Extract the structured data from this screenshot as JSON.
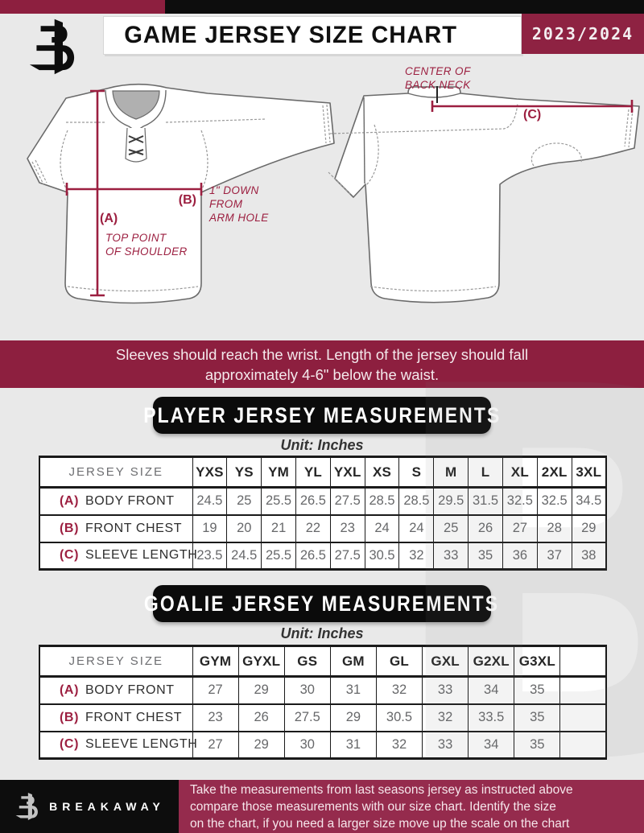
{
  "header": {
    "title": "GAME JERSEY SIZE CHART",
    "season": "2023/2024",
    "logo_name": "breakaway-b-logo"
  },
  "diagram": {
    "a_key": "(A)",
    "a_note": [
      "TOP POINT",
      "OF SHOULDER"
    ],
    "b_key": "(B)",
    "b_note": [
      "1\" DOWN",
      "FROM",
      "ARM HOLE"
    ],
    "c_key": "(C)",
    "c_note": [
      "CENTER OF",
      "BACK NECK"
    ]
  },
  "banner": {
    "lines": [
      "Sleeves should reach the wrist. Length of the jersey should fall",
      "approximately 4-6\" below the waist."
    ]
  },
  "player_table": {
    "section_title": "PLAYER JERSEY MEASUREMENTS",
    "unit": "Unit: Inches",
    "header_label": "JERSEY SIZE",
    "sizes": [
      "YXS",
      "YS",
      "YM",
      "YL",
      "YXL",
      "XS",
      "S",
      "M",
      "L",
      "XL",
      "2XL",
      "3XL"
    ],
    "rows": [
      {
        "key": "(A)",
        "label": "BODY FRONT",
        "values": [
          "24.5",
          "25",
          "25.5",
          "26.5",
          "27.5",
          "28.5",
          "28.5",
          "29.5",
          "31.5",
          "32.5",
          "32.5",
          "34.5"
        ]
      },
      {
        "key": "(B)",
        "label": "FRONT CHEST",
        "values": [
          "19",
          "20",
          "21",
          "22",
          "23",
          "24",
          "24",
          "25",
          "26",
          "27",
          "28",
          "29"
        ]
      },
      {
        "key": "(C)",
        "label": "SLEEVE LENGTH",
        "values": [
          "23.5",
          "24.5",
          "25.5",
          "26.5",
          "27.5",
          "30.5",
          "32",
          "33",
          "35",
          "36",
          "37",
          "38"
        ]
      }
    ]
  },
  "goalie_table": {
    "section_title": "GOALIE JERSEY MEASUREMENTS",
    "unit": "Unit: Inches",
    "header_label": "JERSEY SIZE",
    "sizes": [
      "GYM",
      "GYXL",
      "GS",
      "GM",
      "GL",
      "GXL",
      "G2XL",
      "G3XL",
      ""
    ],
    "rows": [
      {
        "key": "(A)",
        "label": "BODY FRONT",
        "values": [
          "27",
          "29",
          "30",
          "31",
          "32",
          "33",
          "34",
          "35",
          ""
        ]
      },
      {
        "key": "(B)",
        "label": "FRONT CHEST",
        "values": [
          "23",
          "26",
          "27.5",
          "29",
          "30.5",
          "32",
          "33.5",
          "35",
          ""
        ]
      },
      {
        "key": "(C)",
        "label": "SLEEVE LENGTH",
        "values": [
          "27",
          "29",
          "30",
          "31",
          "32",
          "33",
          "34",
          "35",
          ""
        ]
      }
    ]
  },
  "footer": {
    "brand": "BREAKAWAY",
    "lines": [
      "Take the measurements from last seasons jersey as instructed above",
      "compare those measurements  with our size chart. Identify the size",
      "on the chart, if you need a larger size move up the scale on the chart"
    ]
  },
  "colors": {
    "maroon": "#8d1f3f",
    "badge_maroon": "#8e2242",
    "footer_maroon": "#952b4d",
    "annotation": "#9c1f40",
    "background": "#e9e9e9",
    "table_text": "#67686a"
  }
}
